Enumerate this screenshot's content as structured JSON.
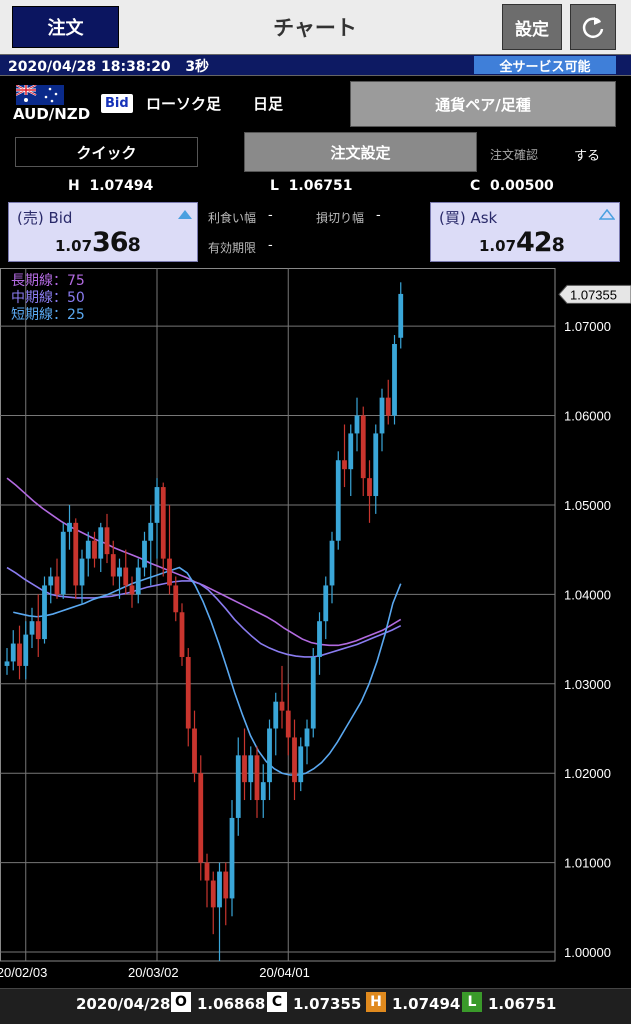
{
  "header": {
    "order_label": "注文",
    "title": "チャート",
    "settings_label": "設定",
    "refresh_icon": "refresh-icon"
  },
  "status": {
    "datetime": "2020/04/28 18:38:20",
    "delay": "3秒",
    "service": "全サービス可能"
  },
  "instrument": {
    "pair": "AUD/NZD",
    "flag_icon": "australia-flag-icon",
    "price_type": "Bid",
    "candle_type": "ローソク足",
    "period": "日足",
    "pair_type_button": "通貨ペア/足種"
  },
  "order_controls": {
    "quick_label": "クイック",
    "order_settings_label": "注文設定",
    "confirm_label": "注文確認",
    "confirm_value": "する"
  },
  "summary": {
    "high_label": "H",
    "high": "1.07494",
    "low_label": "L",
    "low": "1.06751",
    "change_label": "C",
    "change": "0.00500"
  },
  "bid": {
    "label": "(売) Bid",
    "price_prefix": "1.07",
    "price_big": "36",
    "price_suffix": "8"
  },
  "ask": {
    "label": "(買) Ask",
    "price_prefix": "1.07",
    "price_big": "42",
    "price_suffix": "8"
  },
  "order_params": {
    "take_profit_label": "利食い幅",
    "take_profit_value": "-",
    "stop_loss_label": "損切り幅",
    "stop_loss_value": "-",
    "expiry_label": "有効期限",
    "expiry_value": "-"
  },
  "ohlc": {
    "date": "2020/04/28",
    "open_label": "O",
    "open": "1.06868",
    "close_label": "C",
    "close": "1.07355",
    "high_label": "H",
    "high": "1.07494",
    "low_label": "L",
    "low": "1.06751"
  },
  "colors": {
    "up": "#3aa6d8",
    "down": "#c9352e",
    "ma_long": "#b26ae0",
    "ma_mid": "#8a7cf0",
    "ma_short": "#5aa8f0",
    "header_blue": "#0b1560",
    "badge_blue": "#3f7fd9"
  },
  "chart_data": {
    "type": "candlestick",
    "current_price_label": "1.07355",
    "ylim": [
      0.999,
      1.0765
    ],
    "y_ticks": [
      "1.07000",
      "1.06000",
      "1.05000",
      "1.04000",
      "1.03000",
      "1.02000",
      "1.01000",
      "1.00000"
    ],
    "y_tick_values": [
      1.07,
      1.06,
      1.05,
      1.04,
      1.03,
      1.02,
      1.01,
      1.0
    ],
    "x_ticks": [
      "20/02/03",
      "20/03/02",
      "20/04/01"
    ],
    "x_tick_index": [
      3,
      24,
      45
    ],
    "legend": [
      {
        "label": "長期線：75"
      },
      {
        "label": "中期線：50"
      },
      {
        "label": "短期線：25"
      }
    ],
    "candles": [
      {
        "o": 1.032,
        "h": 1.034,
        "l": 1.031,
        "c": 1.0325
      },
      {
        "o": 1.0325,
        "h": 1.036,
        "l": 1.0315,
        "c": 1.0345
      },
      {
        "o": 1.0345,
        "h": 1.0365,
        "l": 1.0305,
        "c": 1.032
      },
      {
        "o": 1.032,
        "h": 1.037,
        "l": 1.0305,
        "c": 1.0355
      },
      {
        "o": 1.0355,
        "h": 1.0385,
        "l": 1.034,
        "c": 1.037
      },
      {
        "o": 1.037,
        "h": 1.04,
        "l": 1.033,
        "c": 1.035
      },
      {
        "o": 1.035,
        "h": 1.042,
        "l": 1.0345,
        "c": 1.041
      },
      {
        "o": 1.041,
        "h": 1.043,
        "l": 1.039,
        "c": 1.042
      },
      {
        "o": 1.042,
        "h": 1.044,
        "l": 1.0395,
        "c": 1.04
      },
      {
        "o": 1.04,
        "h": 1.048,
        "l": 1.0395,
        "c": 1.047
      },
      {
        "o": 1.047,
        "h": 1.05,
        "l": 1.045,
        "c": 1.048
      },
      {
        "o": 1.048,
        "h": 1.0485,
        "l": 1.0395,
        "c": 1.041
      },
      {
        "o": 1.041,
        "h": 1.045,
        "l": 1.039,
        "c": 1.044
      },
      {
        "o": 1.044,
        "h": 1.047,
        "l": 1.042,
        "c": 1.046
      },
      {
        "o": 1.046,
        "h": 1.047,
        "l": 1.043,
        "c": 1.044
      },
      {
        "o": 1.044,
        "h": 1.048,
        "l": 1.0425,
        "c": 1.0475
      },
      {
        "o": 1.0475,
        "h": 1.049,
        "l": 1.0435,
        "c": 1.0445
      },
      {
        "o": 1.0445,
        "h": 1.046,
        "l": 1.041,
        "c": 1.042
      },
      {
        "o": 1.042,
        "h": 1.044,
        "l": 1.0395,
        "c": 1.043
      },
      {
        "o": 1.043,
        "h": 1.045,
        "l": 1.04,
        "c": 1.041
      },
      {
        "o": 1.041,
        "h": 1.042,
        "l": 1.0385,
        "c": 1.04
      },
      {
        "o": 1.04,
        "h": 1.044,
        "l": 1.039,
        "c": 1.043
      },
      {
        "o": 1.043,
        "h": 1.047,
        "l": 1.042,
        "c": 1.046
      },
      {
        "o": 1.046,
        "h": 1.05,
        "l": 1.041,
        "c": 1.048
      },
      {
        "o": 1.048,
        "h": 1.053,
        "l": 1.044,
        "c": 1.052
      },
      {
        "o": 1.052,
        "h": 1.0525,
        "l": 1.042,
        "c": 1.044
      },
      {
        "o": 1.044,
        "h": 1.05,
        "l": 1.04,
        "c": 1.041
      },
      {
        "o": 1.041,
        "h": 1.042,
        "l": 1.037,
        "c": 1.038
      },
      {
        "o": 1.038,
        "h": 1.039,
        "l": 1.032,
        "c": 1.033
      },
      {
        "o": 1.033,
        "h": 1.034,
        "l": 1.023,
        "c": 1.025
      },
      {
        "o": 1.025,
        "h": 1.027,
        "l": 1.019,
        "c": 1.02
      },
      {
        "o": 1.02,
        "h": 1.022,
        "l": 1.008,
        "c": 1.01
      },
      {
        "o": 1.01,
        "h": 1.011,
        "l": 1.005,
        "c": 1.008
      },
      {
        "o": 1.008,
        "h": 1.009,
        "l": 1.002,
        "c": 1.005
      },
      {
        "o": 1.005,
        "h": 1.01,
        "l": 0.999,
        "c": 1.009
      },
      {
        "o": 1.009,
        "h": 1.01,
        "l": 1.003,
        "c": 1.006
      },
      {
        "o": 1.006,
        "h": 1.017,
        "l": 1.004,
        "c": 1.015
      },
      {
        "o": 1.015,
        "h": 1.024,
        "l": 1.013,
        "c": 1.022
      },
      {
        "o": 1.022,
        "h": 1.025,
        "l": 1.017,
        "c": 1.019
      },
      {
        "o": 1.019,
        "h": 1.023,
        "l": 1.017,
        "c": 1.022
      },
      {
        "o": 1.022,
        "h": 1.023,
        "l": 1.015,
        "c": 1.017
      },
      {
        "o": 1.017,
        "h": 1.021,
        "l": 1.015,
        "c": 1.019
      },
      {
        "o": 1.019,
        "h": 1.026,
        "l": 1.017,
        "c": 1.025
      },
      {
        "o": 1.025,
        "h": 1.029,
        "l": 1.022,
        "c": 1.028
      },
      {
        "o": 1.028,
        "h": 1.032,
        "l": 1.025,
        "c": 1.027
      },
      {
        "o": 1.027,
        "h": 1.03,
        "l": 1.022,
        "c": 1.024
      },
      {
        "o": 1.024,
        "h": 1.026,
        "l": 1.017,
        "c": 1.019
      },
      {
        "o": 1.019,
        "h": 1.024,
        "l": 1.018,
        "c": 1.023
      },
      {
        "o": 1.023,
        "h": 1.026,
        "l": 1.021,
        "c": 1.025
      },
      {
        "o": 1.025,
        "h": 1.034,
        "l": 1.024,
        "c": 1.033
      },
      {
        "o": 1.033,
        "h": 1.038,
        "l": 1.031,
        "c": 1.037
      },
      {
        "o": 1.037,
        "h": 1.042,
        "l": 1.035,
        "c": 1.041
      },
      {
        "o": 1.041,
        "h": 1.047,
        "l": 1.039,
        "c": 1.046
      },
      {
        "o": 1.046,
        "h": 1.056,
        "l": 1.045,
        "c": 1.055
      },
      {
        "o": 1.055,
        "h": 1.059,
        "l": 1.052,
        "c": 1.054
      },
      {
        "o": 1.054,
        "h": 1.059,
        "l": 1.051,
        "c": 1.058
      },
      {
        "o": 1.058,
        "h": 1.062,
        "l": 1.056,
        "c": 1.06
      },
      {
        "o": 1.06,
        "h": 1.061,
        "l": 1.051,
        "c": 1.053
      },
      {
        "o": 1.053,
        "h": 1.055,
        "l": 1.048,
        "c": 1.051
      },
      {
        "o": 1.051,
        "h": 1.059,
        "l": 1.049,
        "c": 1.058
      },
      {
        "o": 1.058,
        "h": 1.063,
        "l": 1.056,
        "c": 1.062
      },
      {
        "o": 1.062,
        "h": 1.064,
        "l": 1.059,
        "c": 1.06
      },
      {
        "o": 1.06,
        "h": 1.069,
        "l": 1.059,
        "c": 1.068
      },
      {
        "o": 1.0687,
        "h": 1.0749,
        "l": 1.0675,
        "c": 1.0736
      }
    ],
    "ma_short": [
      1.038,
      1.0378,
      1.0376,
      1.0375,
      1.0376,
      1.0378,
      1.0381,
      1.0384,
      1.0387,
      1.039,
      1.0394,
      1.0397,
      1.04,
      1.0404,
      1.0408,
      1.0412,
      1.0415,
      1.0418,
      1.0421,
      1.0424,
      1.0427,
      1.043,
      1.0424,
      1.041,
      1.0392,
      1.037,
      1.0345,
      1.0318,
      1.029,
      1.0265,
      1.0242,
      1.0225,
      1.0213,
      1.0205,
      1.02,
      1.0198,
      1.0198,
      1.02,
      1.0205,
      1.0212,
      1.0222,
      1.0235,
      1.025,
      1.0265,
      1.028,
      1.03,
      1.0325,
      1.0355,
      1.039,
      1.0412
    ],
    "ma_short_start": 1,
    "ma_mid": [
      1.043,
      1.0424,
      1.0417,
      1.0411,
      1.0405,
      1.04,
      1.0398,
      1.0397,
      1.0396,
      1.0396,
      1.0396,
      1.0397,
      1.0398,
      1.04,
      1.0402,
      1.0405,
      1.0408,
      1.041,
      1.0412,
      1.0414,
      1.0415,
      1.0415,
      1.0412,
      1.0405,
      1.0395,
      1.0384,
      1.0372,
      1.0362,
      1.0353,
      1.0345,
      1.034,
      1.0336,
      1.0333,
      1.0331,
      1.033,
      1.033,
      1.0332,
      1.0335,
      1.0338,
      1.0341,
      1.0344,
      1.0348,
      1.0352,
      1.0356,
      1.036,
      1.0365
    ],
    "ma_mid_start": 0,
    "ma_long": [
      1.053,
      1.0522,
      1.0513,
      1.0504,
      1.0496,
      1.0489,
      1.0482,
      1.0476,
      1.0471,
      1.0466,
      1.0461,
      1.0457,
      1.0452,
      1.0448,
      1.0444,
      1.044,
      1.0435,
      1.0431,
      1.0427,
      1.0423,
      1.0419,
      1.0414,
      1.041,
      1.0405,
      1.04,
      1.0395,
      1.039,
      1.0385,
      1.038,
      1.0375,
      1.0369,
      1.0362,
      1.0356,
      1.035,
      1.0346,
      1.0344,
      1.0343,
      1.0343,
      1.0345,
      1.0348,
      1.0352,
      1.0356,
      1.036,
      1.0366,
      1.0372
    ],
    "ma_long_start": 0
  }
}
